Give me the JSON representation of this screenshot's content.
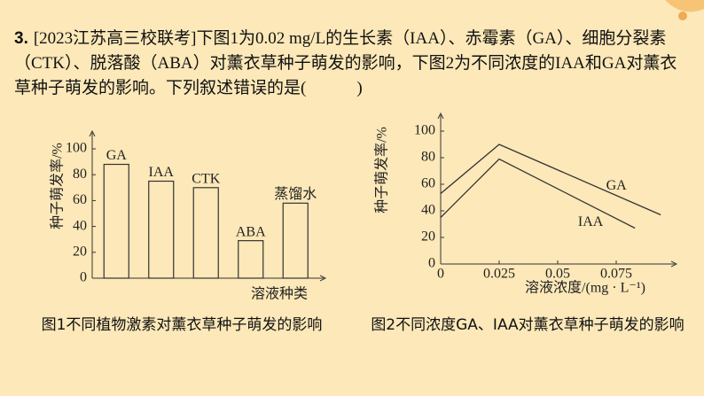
{
  "question": {
    "number": "3.",
    "text": "[2023江苏高三校联考]下图1为0.02 mg/L的生长素（IAA）、赤霉素（GA）、细胞分裂素（CTK）、脱落酸（ABA）对薰衣草种子萌发的影响，下图2为不同浓度的IAA和GA对薰衣草种子萌发的影响。下列叙述错误的是(　　　)"
  },
  "chart_data": [
    {
      "type": "bar",
      "y_label": "种子萌发率/%",
      "x_label": "溶液种类",
      "caption": "图1不同植物激素对薰衣草种子萌发的影响",
      "categories": [
        "GA",
        "IAA",
        "CTK",
        "ABA",
        "蒸馏水"
      ],
      "values": [
        88,
        75,
        70,
        29,
        58
      ],
      "ylim": [
        0,
        100
      ],
      "yticks": [
        0,
        20,
        40,
        60,
        80,
        100
      ]
    },
    {
      "type": "line",
      "y_label": "种子萌发率/%",
      "x_label": "溶液浓度/(mg · L⁻¹)",
      "caption": "图2不同浓度GA、IAA对薰衣草种子萌发的影响",
      "series": [
        {
          "name": "GA",
          "x": [
            0,
            0.025,
            0.094
          ],
          "values": [
            53,
            90,
            37
          ]
        },
        {
          "name": "IAA",
          "x": [
            0,
            0.025,
            0.083
          ],
          "values": [
            35,
            79,
            27
          ]
        }
      ],
      "xlim": [
        0,
        0.1
      ],
      "ylim": [
        0,
        100
      ],
      "xticks": [
        0,
        0.025,
        0.05,
        0.075
      ],
      "yticks": [
        0,
        20,
        40,
        60,
        80,
        100
      ]
    }
  ]
}
